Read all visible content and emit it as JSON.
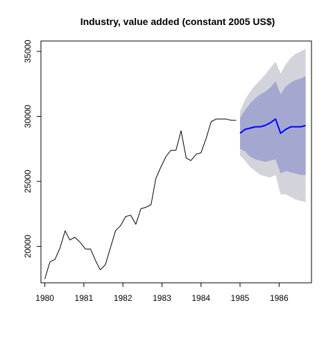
{
  "chart_data": {
    "type": "line",
    "title": "Industry, value added (constant 2005 US$)",
    "xlabel": "",
    "ylabel": "",
    "xlim": [
      1979.9,
      1986.83
    ],
    "ylim": [
      17200,
      35800
    ],
    "x_ticks": [
      1980,
      1981,
      1982,
      1983,
      1984,
      1985,
      1986
    ],
    "y_ticks": [
      20000,
      25000,
      30000,
      35000
    ],
    "grid": false,
    "legend": "none",
    "colors": {
      "observed": "#000000",
      "forecast_mean": "#0000ff",
      "band_80": "#a4a7cf",
      "band_95": "#d3d3db"
    },
    "series": [
      {
        "role": "observed",
        "x": [
          1980.0,
          1980.13,
          1980.26,
          1980.39,
          1980.52,
          1980.64,
          1980.77,
          1980.91,
          1981.04,
          1981.17,
          1981.3,
          1981.42,
          1981.55,
          1981.68,
          1981.81,
          1981.94,
          1982.07,
          1982.2,
          1982.33,
          1982.46,
          1982.58,
          1982.72,
          1982.84,
          1982.97,
          1983.1,
          1983.23,
          1983.36,
          1983.49,
          1983.62,
          1983.74,
          1983.88,
          1984.0,
          1984.13,
          1984.26,
          1984.39,
          1984.52,
          1984.64,
          1984.77,
          1984.9
        ],
        "values": [
          17500,
          18800,
          19000,
          19900,
          21200,
          20500,
          20700,
          20300,
          19800,
          19800,
          18900,
          18200,
          18600,
          19900,
          21200,
          21600,
          22300,
          22400,
          21700,
          22900,
          23000,
          23200,
          25200,
          26100,
          26900,
          27400,
          27400,
          28900,
          26800,
          26600,
          27100,
          27200,
          28300,
          29600,
          29800,
          29800,
          29800,
          29700,
          29700
        ]
      },
      {
        "role": "forecast_mean",
        "x": [
          1985.0,
          1985.13,
          1985.26,
          1985.39,
          1985.52,
          1985.64,
          1985.77,
          1985.91,
          1986.04,
          1986.17,
          1986.3,
          1986.42,
          1986.55,
          1986.68
        ],
        "values": [
          28700,
          29000,
          29100,
          29200,
          29200,
          29300,
          29500,
          29800,
          28700,
          29000,
          29200,
          29200,
          29200,
          29300
        ]
      }
    ],
    "bands": [
      {
        "level": 95,
        "x": [
          1985.0,
          1985.13,
          1985.26,
          1985.39,
          1985.52,
          1985.64,
          1985.77,
          1985.91,
          1986.04,
          1986.17,
          1986.3,
          1986.42,
          1986.55,
          1986.68
        ],
        "lower": [
          27000,
          26600,
          26100,
          25800,
          25500,
          25400,
          25300,
          25500,
          24000,
          24000,
          23800,
          23600,
          23500,
          23400
        ],
        "upper": [
          30400,
          31300,
          31900,
          32400,
          32800,
          33200,
          33700,
          34200,
          33300,
          34000,
          34500,
          34800,
          35000,
          35200
        ]
      },
      {
        "level": 80,
        "x": [
          1985.0,
          1985.13,
          1985.26,
          1985.39,
          1985.52,
          1985.64,
          1985.77,
          1985.91,
          1986.04,
          1986.17,
          1986.3,
          1986.42,
          1986.55,
          1986.68
        ],
        "lower": [
          27500,
          27300,
          26900,
          26700,
          26600,
          26500,
          26600,
          26700,
          25600,
          25800,
          25700,
          25600,
          25500,
          25500
        ],
        "upper": [
          29900,
          30500,
          31000,
          31400,
          31700,
          31900,
          32200,
          32700,
          31700,
          32300,
          32600,
          32800,
          32900,
          33100
        ]
      }
    ]
  }
}
